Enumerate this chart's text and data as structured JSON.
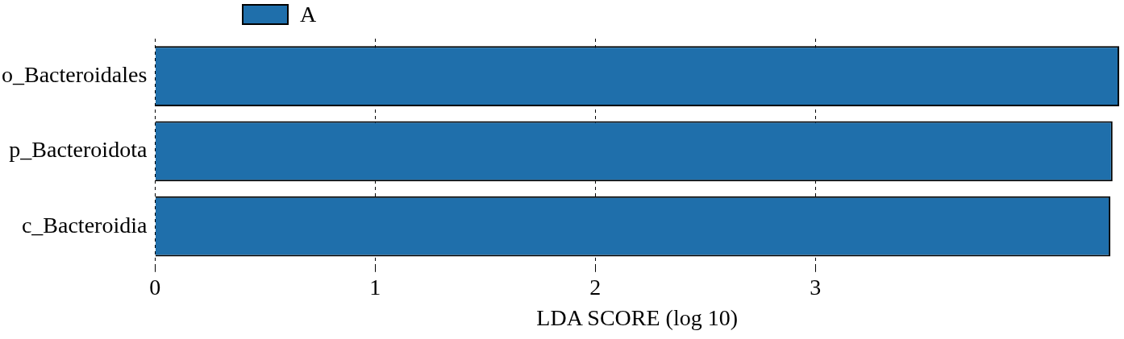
{
  "chart_data": {
    "type": "bar",
    "orientation": "horizontal",
    "xlabel": "LDA SCORE (log 10)",
    "categories": [
      "o_Bacteroidales",
      "p_Bacteroidota",
      "c_Bacteroidia"
    ],
    "series": [
      {
        "name": "A",
        "color": "#1f6fab",
        "values": [
          4.38,
          4.35,
          4.34
        ]
      }
    ],
    "xlim": [
      0,
      4.38
    ],
    "xticks": [
      0,
      1,
      2,
      3
    ],
    "grid": "x",
    "legend": "top left"
  }
}
